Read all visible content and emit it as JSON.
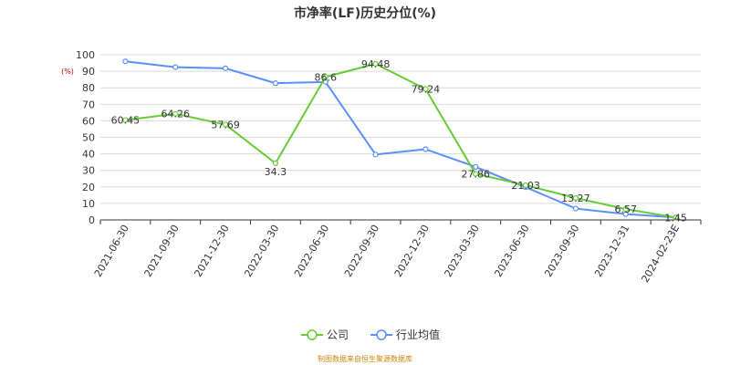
{
  "chart_data": {
    "type": "line",
    "title": "市净率(LF)历史分位(%)",
    "unit_label": "(%)",
    "categories": [
      "2021-06-30",
      "2021-09-30",
      "2021-12-30",
      "2022-03-30",
      "2022-06-30",
      "2022-09-30",
      "2022-12-30",
      "2023-03-30",
      "2023-06-30",
      "2023-09-30",
      "2023-12-31",
      "2024-02-23E"
    ],
    "series": [
      {
        "name": "公司",
        "color": "#66cc33",
        "values": [
          60.45,
          64.26,
          57.69,
          34.3,
          86.6,
          94.48,
          79.24,
          27.86,
          21.03,
          13.27,
          6.57,
          1.45
        ],
        "labels": [
          "60.45",
          "64.26",
          "57.69",
          "34.3",
          "86.6",
          "94.48",
          "79.24",
          "27.86",
          "21.03",
          "13.27",
          "6.57",
          "1.45"
        ]
      },
      {
        "name": "行业均值",
        "color": "#5b8ff9",
        "values": [
          96,
          92.5,
          91.8,
          82.8,
          83.5,
          39.6,
          42.8,
          32.1,
          19.8,
          6.9,
          3.5,
          1.5
        ]
      }
    ],
    "ylim": [
      0,
      100
    ],
    "yticks": [
      0,
      10,
      20,
      30,
      40,
      50,
      60,
      70,
      80,
      90,
      100
    ],
    "grid": true,
    "legend_position": "bottom"
  },
  "source_text": "制图数据来自恒生聚源数据库"
}
